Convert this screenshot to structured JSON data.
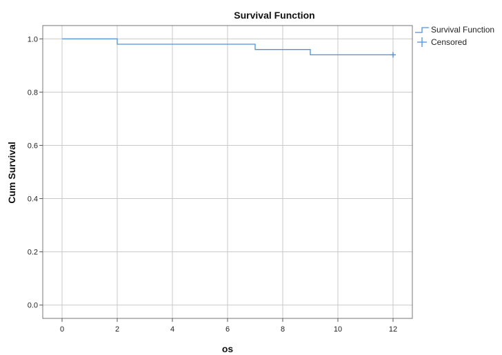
{
  "chart_data": {
    "type": "line",
    "title": "Survival Function",
    "xlabel": "os",
    "ylabel": "Cum Survival",
    "xlim": [
      -0.7,
      12.7
    ],
    "ylim": [
      -0.05,
      1.05
    ],
    "x_ticks": [
      0,
      2,
      4,
      6,
      8,
      10,
      12
    ],
    "y_ticks": [
      0.0,
      0.2,
      0.4,
      0.6,
      0.8,
      1.0
    ],
    "x_tick_labels": [
      "0",
      "2",
      "4",
      "6",
      "8",
      "10",
      "12"
    ],
    "y_tick_labels": [
      "0.0",
      "0.2",
      "0.4",
      "0.6",
      "0.8",
      "1.0"
    ],
    "grid": true,
    "legend_position": "top-right",
    "series": [
      {
        "name": "Survival Function",
        "step": true,
        "x": [
          0,
          2,
          7,
          9,
          12
        ],
        "y": [
          1.0,
          0.98,
          0.96,
          0.94,
          0.94
        ],
        "color": "#4a90e2"
      },
      {
        "name": "Censored",
        "marker": "plus",
        "x": [
          12
        ],
        "y": [
          0.94
        ],
        "color": "#4a90e2"
      }
    ],
    "colors": {
      "line": "#4a90e2",
      "grid": "#c8c8c8",
      "axis": "#555555"
    }
  }
}
